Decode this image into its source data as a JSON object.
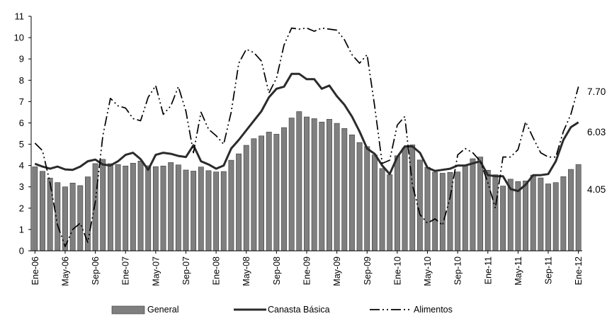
{
  "chart_data": {
    "type": "bar+line",
    "title": "",
    "xlabel": "",
    "ylabel": "",
    "ylim": [
      0,
      11
    ],
    "yticks": [
      "0",
      "1",
      "2",
      "3",
      "4",
      "5",
      "6",
      "7",
      "8",
      "9",
      "10",
      "11"
    ],
    "grid": false,
    "legend_position": "bottom",
    "x_tick_labels": [
      "Ene-06",
      "May-06",
      "Sep-06",
      "Ene-07",
      "May-07",
      "Sep-07",
      "Ene-08",
      "May-08",
      "Sep-08",
      "Ene-09",
      "May-09",
      "Sep-09",
      "Ene-10",
      "May-10",
      "Sep-10",
      "Ene-11",
      "May-11",
      "Sep-11",
      "Ene-12"
    ],
    "categories": [
      "Ene-06",
      "Feb-06",
      "Mar-06",
      "Abr-06",
      "May-06",
      "Jun-06",
      "Jul-06",
      "Ago-06",
      "Sep-06",
      "Oct-06",
      "Nov-06",
      "Dic-06",
      "Ene-07",
      "Feb-07",
      "Mar-07",
      "Abr-07",
      "May-07",
      "Jun-07",
      "Jul-07",
      "Ago-07",
      "Sep-07",
      "Oct-07",
      "Nov-07",
      "Dic-07",
      "Ene-08",
      "Feb-08",
      "Mar-08",
      "Abr-08",
      "May-08",
      "Jun-08",
      "Jul-08",
      "Ago-08",
      "Sep-08",
      "Oct-08",
      "Nov-08",
      "Dic-08",
      "Ene-09",
      "Feb-09",
      "Mar-09",
      "Abr-09",
      "May-09",
      "Jun-09",
      "Jul-09",
      "Ago-09",
      "Sep-09",
      "Oct-09",
      "Nov-09",
      "Dic-09",
      "Ene-10",
      "Feb-10",
      "Mar-10",
      "Abr-10",
      "May-10",
      "Jun-10",
      "Jul-10",
      "Ago-10",
      "Sep-10",
      "Oct-10",
      "Nov-10",
      "Dic-10",
      "Ene-11",
      "Feb-11",
      "Mar-11",
      "Abr-11",
      "May-11",
      "Jun-11",
      "Jul-11",
      "Ago-11",
      "Sep-11",
      "Oct-11",
      "Nov-11",
      "Dic-11",
      "Ene-12"
    ],
    "series": [
      {
        "name": "General",
        "kind": "bar",
        "color": "#7f7f7f",
        "end_label": "4.05",
        "values": [
          3.94,
          3.73,
          3.41,
          3.2,
          3.0,
          3.18,
          3.06,
          3.47,
          4.09,
          4.29,
          4.09,
          4.05,
          3.98,
          4.11,
          4.21,
          3.99,
          3.95,
          3.98,
          4.14,
          4.03,
          3.79,
          3.74,
          3.93,
          3.76,
          3.7,
          3.72,
          4.25,
          4.55,
          4.95,
          5.26,
          5.39,
          5.57,
          5.47,
          5.78,
          6.23,
          6.53,
          6.28,
          6.2,
          6.04,
          6.17,
          5.98,
          5.74,
          5.44,
          5.08,
          4.89,
          4.5,
          3.86,
          3.57,
          4.46,
          4.83,
          4.97,
          4.26,
          3.92,
          3.69,
          3.64,
          3.68,
          3.7,
          4.02,
          4.32,
          4.4,
          3.78,
          3.57,
          3.04,
          3.36,
          3.25,
          3.28,
          3.55,
          3.42,
          3.14,
          3.2,
          3.48,
          3.82,
          4.05
        ]
      },
      {
        "name": "Canasta Básica",
        "kind": "line",
        "color": "#2b2b2b",
        "end_label": "6.03",
        "values": [
          4.08,
          3.95,
          3.85,
          3.95,
          3.82,
          3.8,
          3.95,
          4.2,
          4.28,
          4.05,
          4.0,
          4.2,
          4.5,
          4.6,
          4.3,
          3.8,
          4.5,
          4.6,
          4.55,
          4.45,
          4.4,
          4.95,
          4.2,
          4.05,
          3.85,
          4.0,
          4.8,
          5.2,
          5.65,
          6.1,
          6.55,
          7.2,
          7.6,
          7.7,
          8.3,
          8.3,
          8.05,
          8.05,
          7.6,
          7.75,
          7.25,
          6.85,
          6.3,
          5.6,
          4.8,
          4.55,
          4.0,
          3.6,
          4.4,
          4.9,
          4.9,
          4.6,
          3.9,
          3.75,
          3.8,
          3.85,
          4.0,
          4.0,
          4.1,
          4.2,
          3.55,
          3.5,
          3.5,
          2.9,
          2.8,
          3.1,
          3.55,
          3.55,
          3.6,
          4.2,
          5.2,
          5.8,
          6.03
        ]
      },
      {
        "name": "Alimentos",
        "kind": "line",
        "color": "#000000",
        "end_label": "7.70",
        "values": [
          5.05,
          4.7,
          3.2,
          1.2,
          0.2,
          1.0,
          1.3,
          0.4,
          2.3,
          5.4,
          7.15,
          6.8,
          6.7,
          6.2,
          6.1,
          7.2,
          7.75,
          6.4,
          6.8,
          7.7,
          6.55,
          4.6,
          6.5,
          5.7,
          5.4,
          5.0,
          6.5,
          8.8,
          9.45,
          9.3,
          8.9,
          7.4,
          8.1,
          9.65,
          10.45,
          10.4,
          10.45,
          10.3,
          10.45,
          10.4,
          10.35,
          9.9,
          9.2,
          8.8,
          9.2,
          6.8,
          4.1,
          4.25,
          5.9,
          6.3,
          3.1,
          1.7,
          1.3,
          1.5,
          1.2,
          2.5,
          4.5,
          4.8,
          4.6,
          4.2,
          3.2,
          2.0,
          4.4,
          4.4,
          4.75,
          6.05,
          5.3,
          4.6,
          4.4,
          4.4,
          5.6,
          6.4,
          7.7
        ]
      }
    ]
  }
}
